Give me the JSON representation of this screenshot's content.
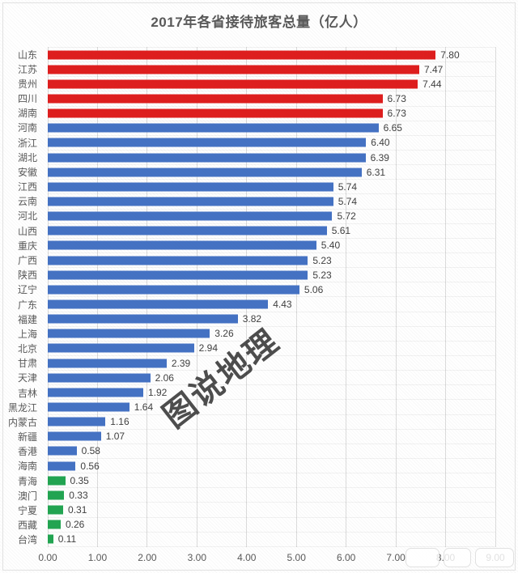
{
  "title": "2017年各省接待旅客总量（亿人）",
  "watermark_center": "图说地理",
  "chart_data": {
    "type": "bar",
    "orientation": "horizontal",
    "title": "2017年各省接待旅客总量（亿人）",
    "unit": "亿人",
    "xlabel": "",
    "ylabel": "",
    "xlim": [
      0,
      9
    ],
    "grid": true,
    "x_ticks": [
      "0.00",
      "1.00",
      "2.00",
      "3.00",
      "4.00",
      "5.00",
      "6.00",
      "7.00",
      "8.00",
      "9.00"
    ],
    "categories": [
      "山东",
      "江苏",
      "贵州",
      "四川",
      "湖南",
      "河南",
      "浙江",
      "湖北",
      "安徽",
      "江西",
      "云南",
      "河北",
      "山西",
      "重庆",
      "广西",
      "陕西",
      "辽宁",
      "广东",
      "福建",
      "上海",
      "北京",
      "甘肃",
      "天津",
      "吉林",
      "黑龙江",
      "内蒙古",
      "新疆",
      "香港",
      "海南",
      "青海",
      "澳门",
      "宁夏",
      "西藏",
      "台湾"
    ],
    "values": [
      7.8,
      7.47,
      7.44,
      6.73,
      6.73,
      6.65,
      6.4,
      6.39,
      6.31,
      5.74,
      5.74,
      5.72,
      5.61,
      5.4,
      5.23,
      5.23,
      5.06,
      4.43,
      3.82,
      3.26,
      2.94,
      2.39,
      2.06,
      1.92,
      1.64,
      1.16,
      1.07,
      0.58,
      0.56,
      0.35,
      0.33,
      0.31,
      0.26,
      0.11
    ],
    "values_display": [
      "7.80",
      "7.47",
      "7.44",
      "6.73",
      "6.73",
      "6.65",
      "6.40",
      "6.39",
      "6.31",
      "5.74",
      "5.74",
      "5.72",
      "5.61",
      "5.40",
      "5.23",
      "5.23",
      "5.06",
      "4.43",
      "3.82",
      "3.26",
      "2.94",
      "2.39",
      "2.06",
      "1.92",
      "1.64",
      "1.16",
      "1.07",
      "0.58",
      "0.56",
      "0.35",
      "0.33",
      "0.31",
      "0.26",
      "0.11"
    ],
    "color_groups": [
      "red",
      "red",
      "red",
      "red",
      "red",
      "blue",
      "blue",
      "blue",
      "blue",
      "blue",
      "blue",
      "blue",
      "blue",
      "blue",
      "blue",
      "blue",
      "blue",
      "blue",
      "blue",
      "blue",
      "blue",
      "blue",
      "blue",
      "blue",
      "blue",
      "blue",
      "blue",
      "blue",
      "blue",
      "green",
      "green",
      "green",
      "green",
      "green"
    ],
    "palette": {
      "red": "#DF1D1D",
      "blue": "#4472C4",
      "green": "#21A551"
    },
    "gridline_color": "#DCDCDC",
    "label_color": "#595959",
    "value_color": "#3F3F3F"
  }
}
